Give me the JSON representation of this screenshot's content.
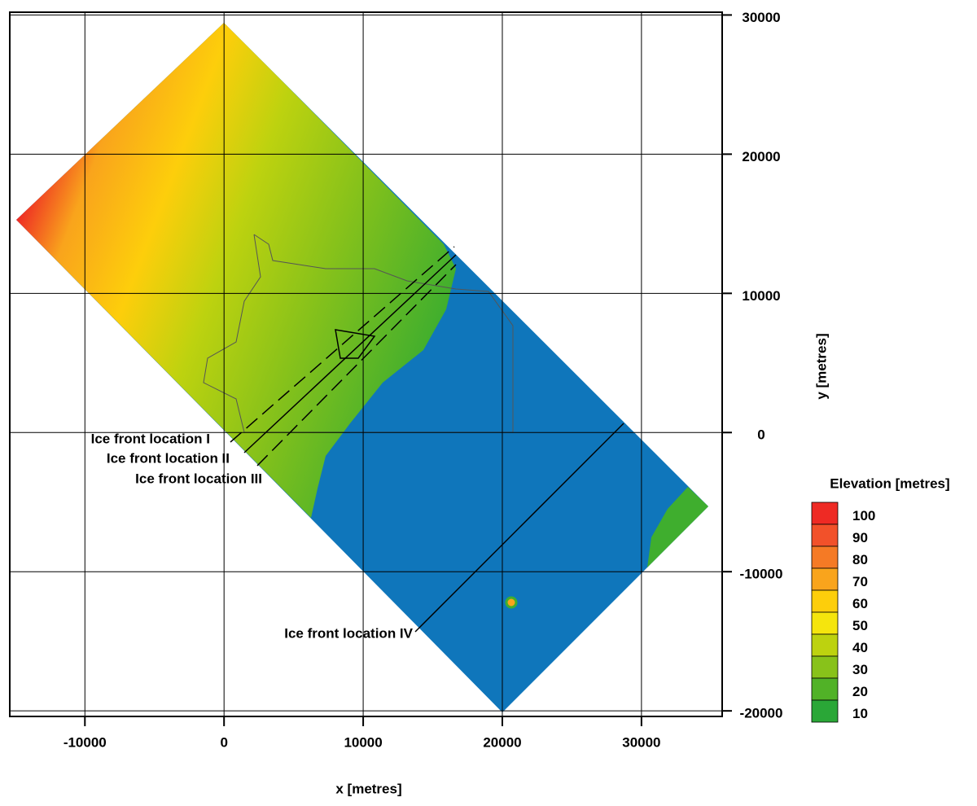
{
  "chart_data": {
    "type": "map",
    "xlabel": "x [metres]",
    "ylabel": "y [metres]",
    "xlim": [
      -15400,
      35800
    ],
    "ylim": [
      -20400,
      30200
    ],
    "xticks": [
      -10000,
      0,
      10000,
      20000,
      30000
    ],
    "yticks": [
      -20000,
      -10000,
      0,
      10000,
      20000,
      30000
    ],
    "grid": true,
    "annotations": [
      "Ice front location I",
      "Ice front location II",
      "Ice front location III",
      "Ice front location IV"
    ],
    "legend": {
      "title": "Elevation [metres]",
      "levels": [
        100,
        90,
        80,
        70,
        60,
        50,
        40,
        30,
        20,
        10
      ],
      "colors": [
        "#ee2a24",
        "#f2512a",
        "#f57a25",
        "#f9a41c",
        "#fdce0b",
        "#f5e50d",
        "#bdd20f",
        "#88c21a",
        "#51b227",
        "#2aa737"
      ]
    }
  }
}
